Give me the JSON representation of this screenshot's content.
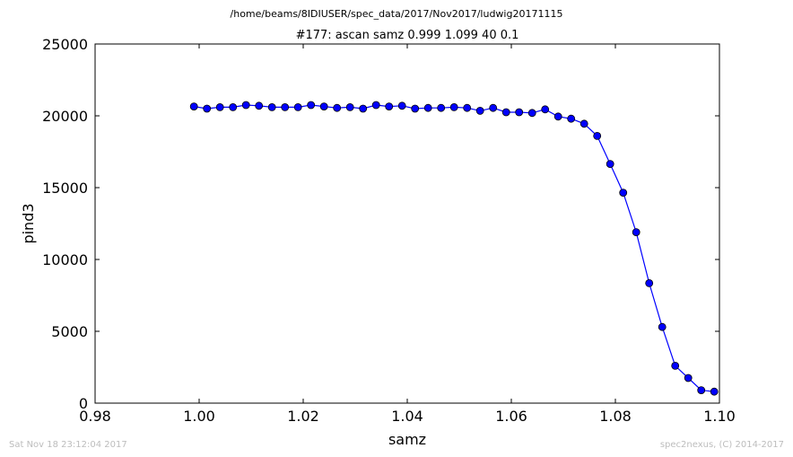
{
  "suptitle": "/home/beams/8IDIUSER/spec_data/2017/Nov2017/ludwig20171115",
  "footer": {
    "left": "Sat Nov 18 23:12:04 2017",
    "right": "spec2nexus, (C) 2014-2017"
  },
  "colors": {
    "series": "#0000ff",
    "axes": "#000000",
    "footer": "#bdbdbd"
  },
  "chart_data": {
    "type": "line",
    "title": "#177: ascan  samz 0.999 1.099  40 0.1",
    "xlabel": "samz",
    "ylabel": "pind3",
    "xlim": [
      0.98,
      1.1
    ],
    "ylim": [
      0,
      25000
    ],
    "xticks": [
      0.98,
      1.0,
      1.02,
      1.04,
      1.06,
      1.08,
      1.1
    ],
    "xtick_labels": [
      "0.98",
      "1.00",
      "1.02",
      "1.04",
      "1.06",
      "1.08",
      "1.10"
    ],
    "yticks": [
      0,
      5000,
      10000,
      15000,
      20000,
      25000
    ],
    "ytick_labels": [
      "0",
      "5000",
      "10000",
      "15000",
      "20000",
      "25000"
    ],
    "grid": false,
    "marker": "circle",
    "series": [
      {
        "x": [
          0.999,
          1.0015,
          1.004,
          1.0065,
          1.009,
          1.0115,
          1.014,
          1.0165,
          1.019,
          1.0215,
          1.024,
          1.0265,
          1.029,
          1.0315,
          1.034,
          1.0365,
          1.039,
          1.0415,
          1.044,
          1.0465,
          1.049,
          1.0515,
          1.054,
          1.0565,
          1.059,
          1.0615,
          1.064,
          1.0665,
          1.069,
          1.0715,
          1.074,
          1.0765,
          1.079,
          1.0815,
          1.084,
          1.0865,
          1.089,
          1.0915,
          1.094,
          1.0965,
          1.099
        ],
        "y": [
          20650,
          20500,
          20600,
          20600,
          20750,
          20700,
          20600,
          20600,
          20600,
          20750,
          20650,
          20550,
          20600,
          20500,
          20750,
          20650,
          20700,
          20500,
          20550,
          20550,
          20600,
          20550,
          20350,
          20550,
          20250,
          20250,
          20200,
          20450,
          19950,
          19800,
          19450,
          18600,
          16650,
          14650,
          11900,
          8350,
          5300,
          2600,
          1750,
          900,
          800
        ]
      }
    ]
  }
}
